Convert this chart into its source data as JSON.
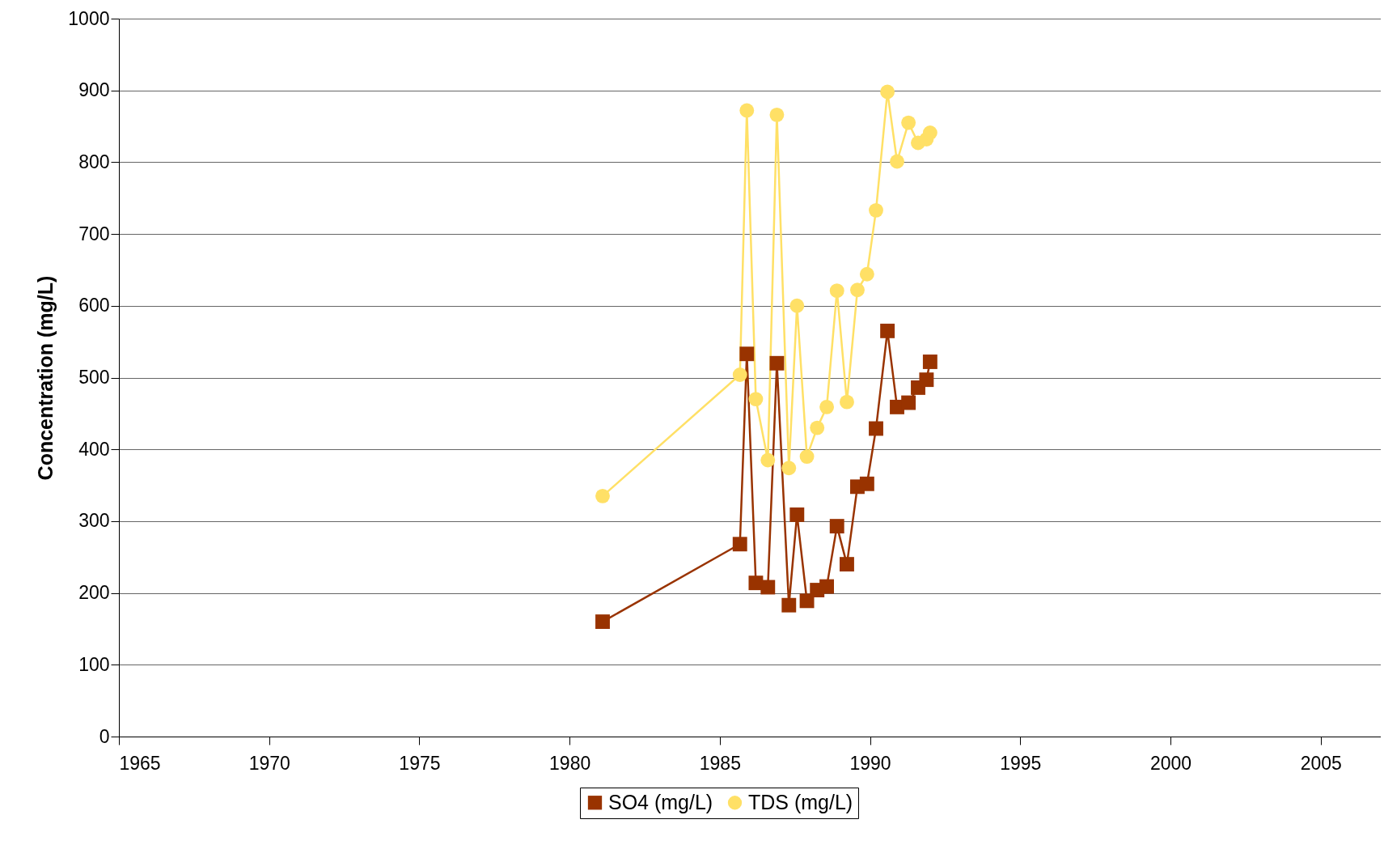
{
  "chart_data": {
    "type": "line",
    "ylabel": "Concentration (mg/L)",
    "xlim": [
      1965,
      2007
    ],
    "xticks": [
      1965,
      1970,
      1975,
      1980,
      1985,
      1990,
      1995,
      2000,
      2005
    ],
    "ylim": [
      0,
      1000
    ],
    "yticks": [
      0,
      100,
      200,
      300,
      400,
      500,
      600,
      700,
      800,
      900,
      1000
    ],
    "grid": "y",
    "legend": "bottom",
    "line_style": "solid",
    "x": [
      1981.1,
      1985.67,
      1985.9,
      1986.2,
      1986.6,
      1986.9,
      1987.3,
      1987.57,
      1987.9,
      1988.24,
      1988.56,
      1988.9,
      1989.23,
      1989.58,
      1989.9,
      1990.2,
      1990.58,
      1990.9,
      1991.28,
      1991.6,
      1991.88,
      1992.0
    ],
    "series": [
      {
        "name": "SO4 (mg/L)",
        "color": "#993300",
        "marker": "square",
        "values": [
          160,
          268,
          533,
          214,
          208,
          520,
          183,
          309,
          189,
          204,
          209,
          293,
          240,
          348,
          352,
          429,
          565,
          459,
          465,
          486,
          497,
          522
        ]
      },
      {
        "name": "TDS (mg/L)",
        "color": "#ffe066",
        "marker": "circle",
        "values": [
          335,
          504,
          872,
          470,
          385,
          866,
          374,
          600,
          390,
          430,
          459,
          621,
          466,
          622,
          644,
          733,
          898,
          801,
          855,
          827,
          832,
          841
        ]
      }
    ]
  }
}
